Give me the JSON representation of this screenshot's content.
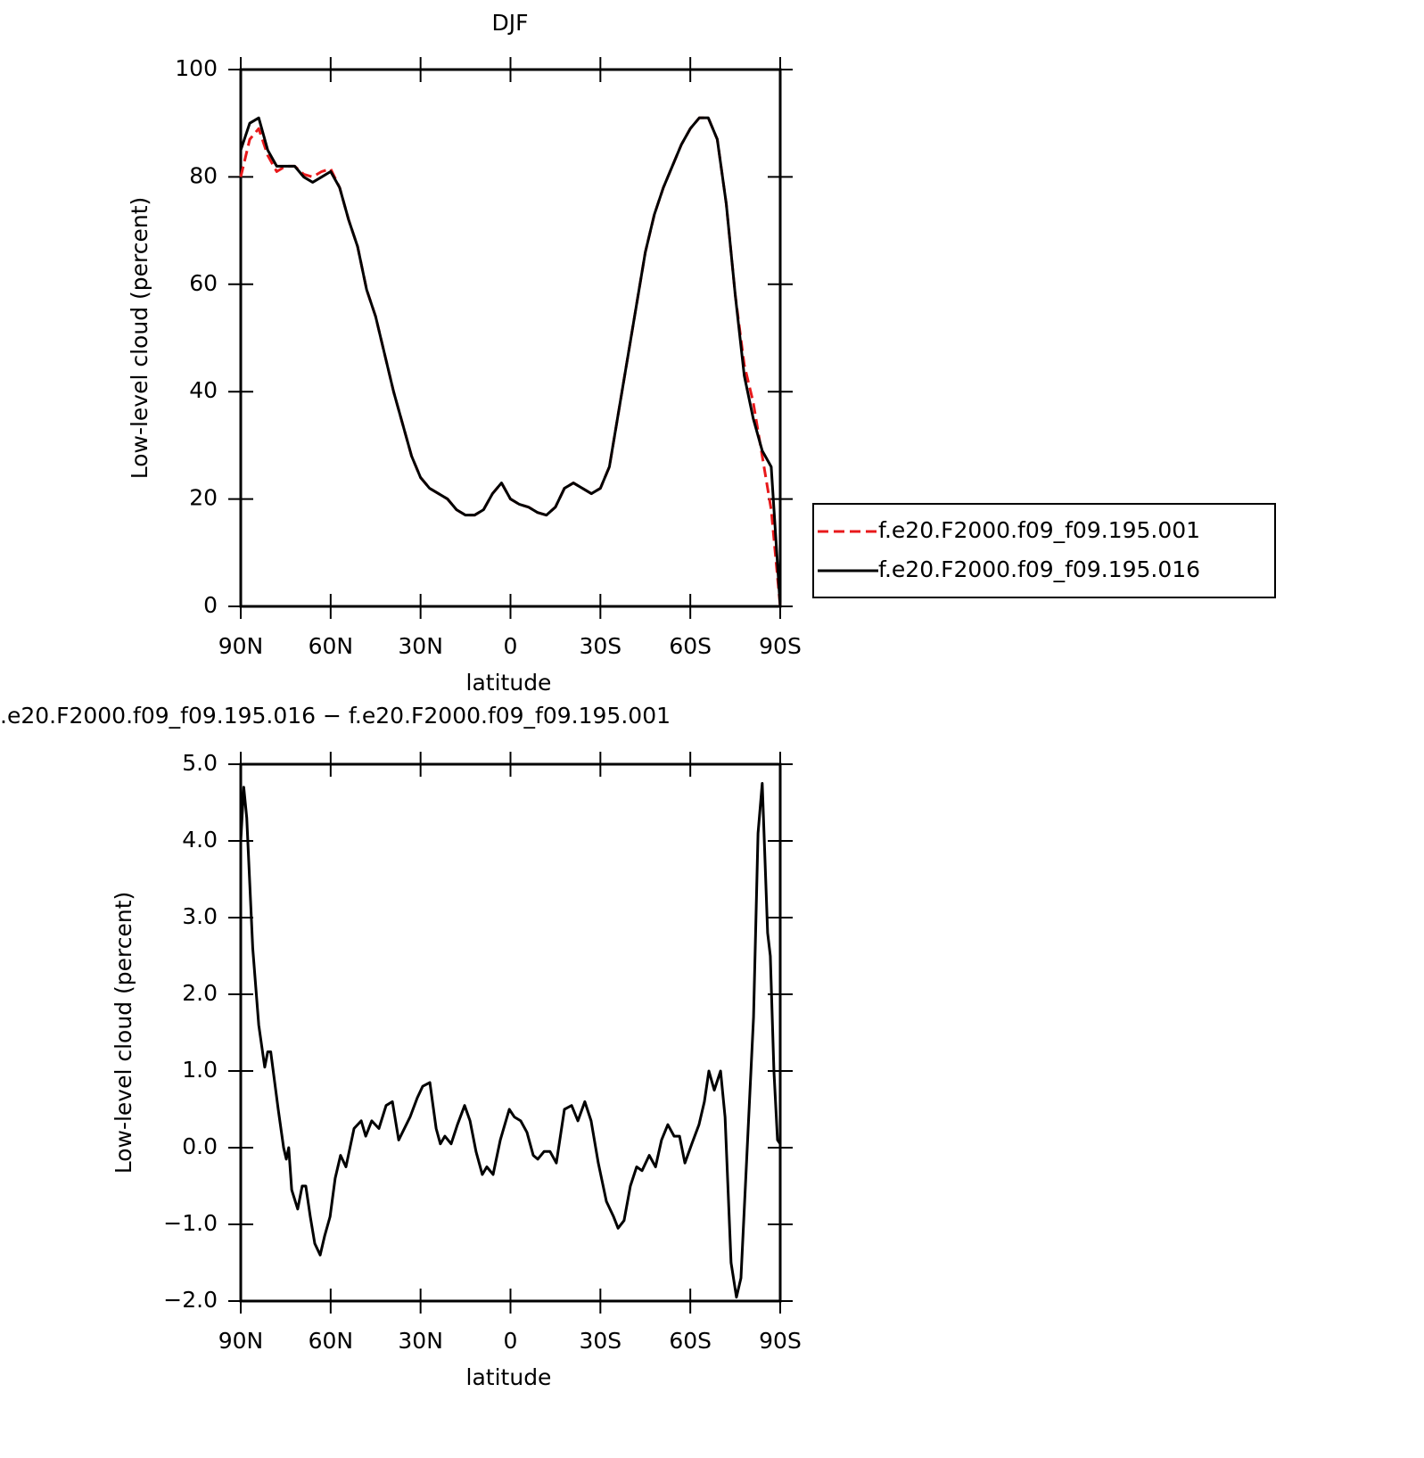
{
  "chart_data": [
    {
      "type": "line",
      "title": "DJF",
      "x_label": "latitude",
      "y_label": "Low-level cloud (percent)",
      "x": [
        90,
        87,
        84,
        81,
        78,
        75,
        72,
        69,
        66,
        63,
        60,
        57,
        54,
        51,
        48,
        45,
        42,
        39,
        36,
        33,
        30,
        27,
        24,
        21,
        18,
        15,
        12,
        9,
        6,
        3,
        0,
        -3,
        -6,
        -9,
        -12,
        -15,
        -18,
        -21,
        -24,
        -27,
        -30,
        -33,
        -36,
        -39,
        -42,
        -45,
        -48,
        -51,
        -54,
        -57,
        -60,
        -63,
        -66,
        -69,
        -72,
        -75,
        -78,
        -81,
        -84,
        -87,
        -90
      ],
      "series": [
        {
          "name": "f.e20.F2000.f09_f09.195.001",
          "color": "#e8191b",
          "line_style": "dashed",
          "values": [
            80,
            87,
            89,
            84,
            81,
            82,
            82,
            80.5,
            80,
            81,
            81.5,
            78,
            72,
            67,
            59,
            54,
            47,
            40,
            34,
            28,
            24,
            22,
            21,
            20,
            18,
            17,
            17,
            18,
            21,
            23,
            20,
            19,
            18.5,
            17.5,
            17,
            18.5,
            22,
            23,
            22,
            21,
            22,
            26,
            36,
            46,
            56,
            66,
            73,
            78,
            82,
            86,
            89,
            91,
            91,
            87,
            75,
            58,
            45,
            38,
            28,
            18,
            0
          ]
        },
        {
          "name": "f.e20.F2000.f09_f09.195.016",
          "color": "#000000",
          "line_style": "solid",
          "values": [
            85,
            90,
            91,
            85,
            82,
            82,
            82,
            80,
            79,
            80,
            81,
            78,
            72,
            67,
            59,
            54,
            47,
            40,
            34,
            28,
            24,
            22,
            21,
            20,
            18,
            17,
            17,
            18,
            21,
            23,
            20,
            19,
            18.5,
            17.5,
            17,
            18.5,
            22,
            23,
            22,
            21,
            22,
            26,
            36,
            46,
            56,
            66,
            73,
            78,
            82,
            86,
            89,
            91,
            91,
            87,
            75,
            58,
            43,
            35,
            29,
            26,
            0
          ]
        }
      ],
      "xlim": [
        90,
        -90
      ],
      "xticks": [
        {
          "value": 90,
          "label": "90N"
        },
        {
          "value": 60,
          "label": "60N"
        },
        {
          "value": 30,
          "label": "30N"
        },
        0,
        {
          "value": -30,
          "label": "30S"
        },
        {
          "value": -60,
          "label": "60S"
        },
        {
          "value": -90,
          "label": "90S"
        }
      ],
      "ylim": [
        0,
        100
      ],
      "yticks": [
        0,
        20,
        40,
        60,
        80,
        100
      ],
      "legend": "right"
    },
    {
      "type": "line",
      "title": ".e20.F2000.f09_f09.195.016 − f.e20.F2000.f09_f09.195.001",
      "x_label": "latitude",
      "y_label": "Low-level cloud (percent)",
      "x": [
        90,
        89,
        88,
        86,
        84,
        82,
        81,
        80,
        79,
        77.5,
        75.7,
        74.8,
        74,
        73,
        71,
        69.5,
        68.3,
        66.8,
        65.3,
        63.5,
        62,
        60.2,
        58.5,
        56.7,
        54.9,
        52.2,
        49.8,
        48.3,
        46.3,
        43.9,
        41.5,
        39.4,
        37.3,
        33.5,
        31.1,
        29.3,
        26.9,
        24.8,
        23.4,
        21.9,
        19.8,
        17.7,
        15.3,
        13.5,
        11.5,
        9.4,
        7.9,
        5.8,
        3.4,
        0.4,
        -1.3,
        -3.4,
        -5.5,
        -7.6,
        -9.1,
        -11.2,
        -13.2,
        -15.3,
        -18,
        -20.4,
        -22.5,
        -24.8,
        -26.9,
        -29.3,
        -32,
        -34.4,
        -35.9,
        -37.9,
        -40,
        -42.1,
        -43.9,
        -46.3,
        -48.4,
        -50.4,
        -52.5,
        -54.6,
        -56.4,
        -58.2,
        -60.5,
        -62.9,
        -64.7,
        -66.2,
        -68,
        -70.1,
        -71.6,
        -73.6,
        -75.4,
        -76.9,
        -79,
        -81.1,
        -82.6,
        -84,
        -85.8,
        -86.7,
        -87.9,
        -89.1,
        -90
      ],
      "values": [
        4.0,
        4.7,
        4.3,
        2.6,
        1.6,
        1.05,
        1.25,
        1.25,
        0.95,
        0.5,
        0.0,
        -0.15,
        0.0,
        -0.55,
        -0.8,
        -0.5,
        -0.5,
        -0.9,
        -1.25,
        -1.4,
        -1.15,
        -0.9,
        -0.4,
        -0.1,
        -0.25,
        0.25,
        0.35,
        0.15,
        0.35,
        0.25,
        0.55,
        0.6,
        0.1,
        0.4,
        0.65,
        0.8,
        0.85,
        0.25,
        0.05,
        0.15,
        0.05,
        0.3,
        0.55,
        0.35,
        -0.05,
        -0.35,
        -0.25,
        -0.35,
        0.1,
        0.5,
        0.4,
        0.35,
        0.2,
        -0.1,
        -0.15,
        -0.05,
        -0.05,
        -0.2,
        0.5,
        0.55,
        0.35,
        0.6,
        0.35,
        -0.2,
        -0.7,
        -0.9,
        -1.05,
        -0.95,
        -0.5,
        -0.25,
        -0.3,
        -0.1,
        -0.25,
        0.1,
        0.3,
        0.15,
        0.15,
        -0.2,
        0.05,
        0.3,
        0.6,
        1.0,
        0.75,
        1.0,
        0.4,
        -1.5,
        -1.95,
        -1.7,
        0.0,
        1.7,
        4.1,
        4.75,
        2.8,
        2.5,
        1.0,
        0.1,
        0.05
      ],
      "color": "#000000",
      "xlim": [
        90,
        -90
      ],
      "xticks": [
        {
          "value": 90,
          "label": "90N"
        },
        {
          "value": 60,
          "label": "60N"
        },
        {
          "value": 30,
          "label": "30N"
        },
        0,
        {
          "value": -30,
          "label": "30S"
        },
        {
          "value": -60,
          "label": "60S"
        },
        {
          "value": -90,
          "label": "90S"
        }
      ],
      "ylim": [
        -2,
        5
      ],
      "yticks": [
        {
          "value": -2,
          "label": "−2.0"
        },
        {
          "value": -1,
          "label": "−1.0"
        },
        {
          "value": 0,
          "label": "0.0"
        },
        {
          "value": 1,
          "label": "1.0"
        },
        {
          "value": 2,
          "label": "2.0"
        },
        {
          "value": 3,
          "label": "3.0"
        },
        {
          "value": 4,
          "label": "4.0"
        },
        {
          "value": 5,
          "label": "5.0"
        }
      ]
    }
  ]
}
